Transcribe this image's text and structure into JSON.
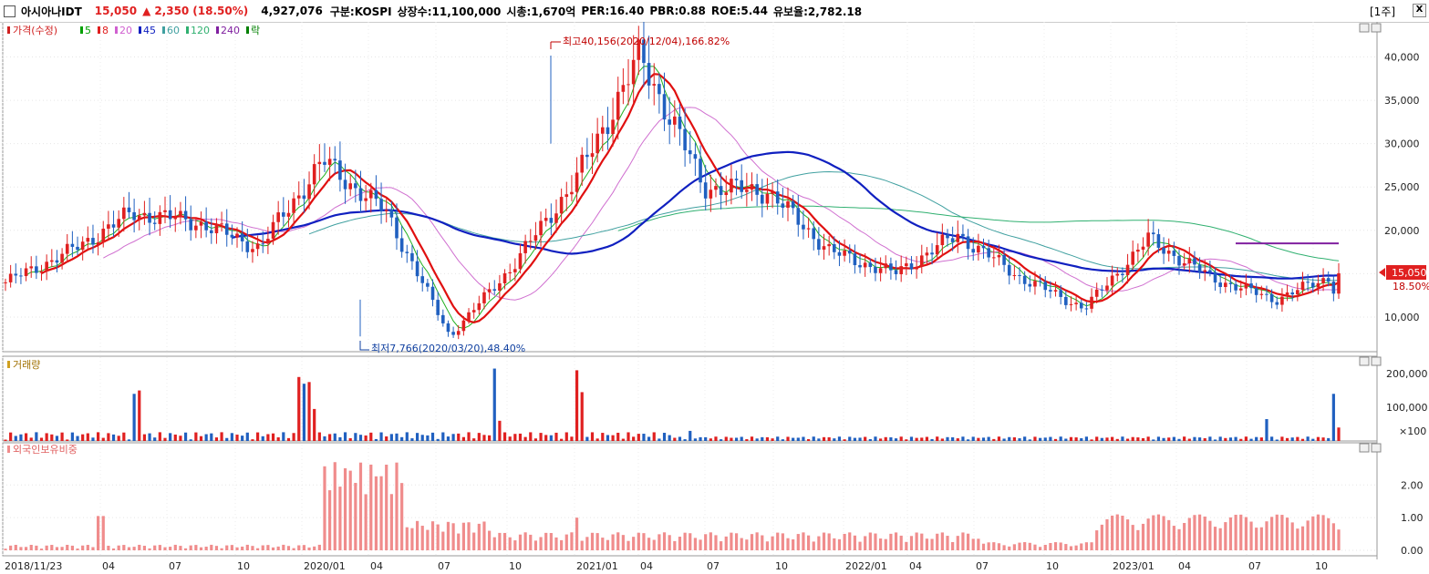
{
  "header": {
    "stock_name": "아시아나IDT",
    "price": "15,050",
    "change_arrow": "▲",
    "change": "2,350",
    "change_pct": "(18.50%)",
    "volume": "4,927,076",
    "market": "구분:KOSPI",
    "shares": "상장수:11,100,000",
    "market_cap": "시총:1,670억",
    "per": "PER:16.40",
    "pbr": "PBR:0.88",
    "roe": "ROE:5.44",
    "float": "유보율:2,782.18",
    "period": "[1주]",
    "close_label": "X"
  },
  "legend": {
    "price_label": "가격(수정)",
    "items": [
      {
        "label": "5",
        "color": "#00a000"
      },
      {
        "label": "8",
        "color": "#e02020"
      },
      {
        "label": "20",
        "color": "#d060d0"
      },
      {
        "label": "45",
        "color": "#1020c0"
      },
      {
        "label": "60",
        "color": "#40a0a0"
      },
      {
        "label": "120",
        "color": "#30b070"
      },
      {
        "label": "240",
        "color": "#8020a0"
      },
      {
        "label": "락",
        "color": "#008000"
      }
    ]
  },
  "annotations": {
    "high": "최고40,156(2020/12/04),166.82%",
    "low": "최저7,766(2020/03/20),48.40%",
    "last_price": "15,050",
    "last_pct": "18.50%"
  },
  "volume_panel": {
    "label": "거래량",
    "ticks": [
      "200,000",
      "100,000",
      "×100"
    ]
  },
  "foreign_panel": {
    "label": "외국인보유비중",
    "ticks": [
      "2.00",
      "1.00",
      "0.00"
    ]
  },
  "price_ticks": [
    "40,000",
    "35,000",
    "30,000",
    "25,000",
    "20,000",
    "15,000",
    "10,000"
  ],
  "x_labels": [
    "2018/11/23",
    "04",
    "07",
    "10",
    "2020/01",
    "04",
    "07",
    "10",
    "2021/01",
    "04",
    "07",
    "10",
    "2022/01",
    "04",
    "07",
    "10",
    "2023/01",
    "04",
    "07",
    "10"
  ],
  "colors": {
    "up": "#e02020",
    "down": "#2060c0",
    "ma45": "#1020c0",
    "ma8": "#e01010",
    "foreign_bar": "#f08c8c"
  },
  "chart_data": {
    "type": "candlestick",
    "weekly_close_anchors": [
      {
        "date": "2018/11/23",
        "price": 14000
      },
      {
        "date": "2019/03",
        "price": 17500
      },
      {
        "date": "2019/05",
        "price": 22000
      },
      {
        "date": "2019/07",
        "price": 21000
      },
      {
        "date": "2019/10",
        "price": 18000
      },
      {
        "date": "2019/11",
        "price": 28000
      },
      {
        "date": "2020/01",
        "price": 22000
      },
      {
        "date": "2020/03/20",
        "price": 7766
      },
      {
        "date": "2020/05",
        "price": 16000
      },
      {
        "date": "2020/08",
        "price": 26000
      },
      {
        "date": "2020/12/04",
        "price": 40156
      },
      {
        "date": "2021/01",
        "price": 25000
      },
      {
        "date": "2021/05",
        "price": 24500
      },
      {
        "date": "2021/08",
        "price": 17500
      },
      {
        "date": "2021/12",
        "price": 15000
      },
      {
        "date": "2022/03",
        "price": 19500
      },
      {
        "date": "2022/07",
        "price": 14500
      },
      {
        "date": "2022/10",
        "price": 11000
      },
      {
        "date": "2022/12",
        "price": 19000
      },
      {
        "date": "2023/04",
        "price": 14500
      },
      {
        "date": "2023/10",
        "price": 12000
      },
      {
        "date": "2023/11",
        "price": 15050
      }
    ],
    "reference_line_240": 18500,
    "price_range": [
      6000,
      43000
    ],
    "volume_range": [
      0,
      230000
    ],
    "foreign_range": [
      0,
      2.9
    ]
  }
}
